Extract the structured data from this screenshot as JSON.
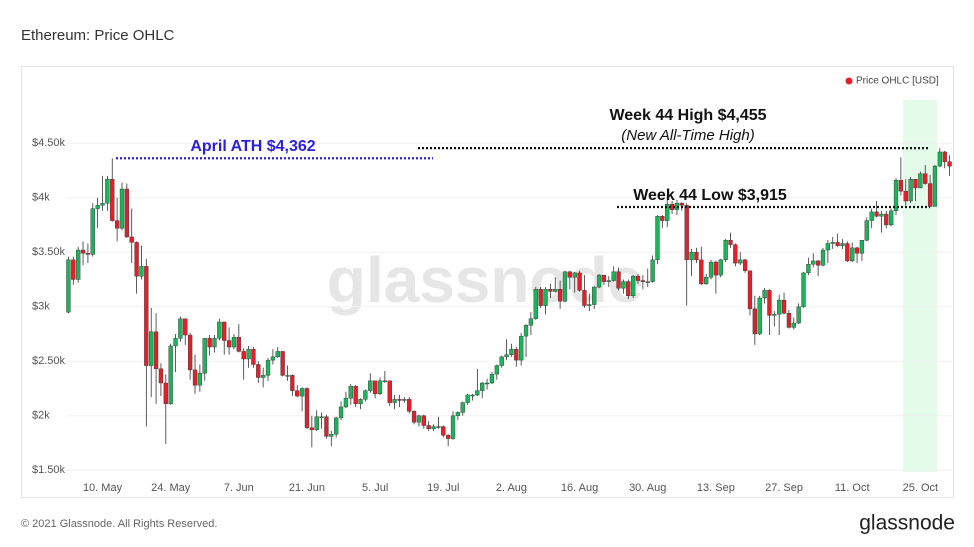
{
  "chart_data": {
    "type": "candlestick",
    "title": "Ethereum: Price OHLC",
    "watermark": "glassnode",
    "footer": "© 2021 Glassnode. All Rights Reserved.",
    "logo": "glassnode",
    "legend": "top-right",
    "grid": true,
    "ylim": [
      1410,
      4970
    ],
    "yticks": [
      {
        "value": 1500,
        "label": "$1.50k"
      },
      {
        "value": 2000,
        "label": "$2k"
      },
      {
        "value": 2500,
        "label": "$2.50k"
      },
      {
        "value": 3000,
        "label": "$3k"
      },
      {
        "value": 3500,
        "label": "$3.50k"
      },
      {
        "value": 4000,
        "label": "$4k"
      },
      {
        "value": 4500,
        "label": "$4.50k"
      }
    ],
    "categories": [
      null,
      null,
      null,
      null,
      null,
      null,
      null,
      "10. May",
      null,
      null,
      null,
      null,
      null,
      null,
      null,
      null,
      null,
      null,
      null,
      null,
      null,
      "24. May",
      null,
      null,
      null,
      null,
      null,
      null,
      null,
      null,
      null,
      null,
      null,
      null,
      null,
      "7. Jun",
      null,
      null,
      null,
      null,
      null,
      null,
      null,
      null,
      null,
      null,
      null,
      null,
      null,
      "21. Jun",
      null,
      null,
      null,
      null,
      null,
      null,
      null,
      null,
      null,
      null,
      null,
      null,
      null,
      "5. Jul",
      null,
      null,
      null,
      null,
      null,
      null,
      null,
      null,
      null,
      null,
      null,
      null,
      null,
      "19. Jul",
      null,
      null,
      null,
      null,
      null,
      null,
      null,
      null,
      null,
      null,
      null,
      null,
      null,
      "2. Aug",
      null,
      null,
      null,
      null,
      null,
      null,
      null,
      null,
      null,
      null,
      null,
      null,
      null,
      "16. Aug",
      null,
      null,
      null,
      null,
      null,
      null,
      null,
      null,
      null,
      null,
      null,
      null,
      null,
      "30. Aug",
      null,
      null,
      null,
      null,
      null,
      null,
      null,
      null,
      null,
      null,
      null,
      null,
      null,
      "13. Sep",
      null,
      null,
      null,
      null,
      null,
      null,
      null,
      null,
      null,
      null,
      null,
      null,
      null,
      "27. Sep",
      null,
      null,
      null,
      null,
      null,
      null,
      null,
      null,
      null,
      null,
      null,
      null,
      null,
      "11. Oct",
      null,
      null,
      null,
      null,
      null,
      null,
      null,
      null,
      null,
      null,
      null,
      null,
      null,
      "25. Oct",
      null,
      null,
      null,
      null,
      null,
      null
    ],
    "series": [
      {
        "name": "Price OHLC [USD]",
        "color": "#e3202a",
        "up_color": "#1cb35a",
        "down_color": "#e3202a",
        "open": [
          2950,
          3430,
          3250,
          3520,
          3490,
          3480,
          3900,
          3930,
          3950,
          4170,
          3790,
          3720,
          4080,
          3640,
          3590,
          3280,
          3370,
          2460,
          2770,
          2430,
          2300,
          2110,
          2640,
          2710,
          2890,
          2740,
          2420,
          2280,
          2390,
          2710,
          2630,
          2710,
          2860,
          2690,
          2630,
          2720,
          2590,
          2520,
          2610,
          2470,
          2350,
          2370,
          2510,
          2540,
          2590,
          2370,
          2370,
          2230,
          2180,
          2250,
          1890,
          1870,
          1990,
          1990,
          1810,
          1830,
          1980,
          2080,
          2160,
          2270,
          2110,
          2150,
          2230,
          2320,
          2200,
          2320,
          2320,
          2120,
          2150,
          2140,
          2150,
          2040,
          1940,
          2000,
          1910,
          1880,
          1900,
          1900,
          1820,
          1790,
          2000,
          2030,
          2120,
          2190,
          2190,
          2230,
          2300,
          2300,
          2380,
          2460,
          2540,
          2560,
          2610,
          2510,
          2730,
          2830,
          2890,
          3160,
          3010,
          3160,
          3140,
          3160,
          3050,
          3320,
          3270,
          3310,
          3150,
          3010,
          3020,
          3180,
          3290,
          3230,
          3240,
          3320,
          3170,
          3230,
          3100,
          3280,
          3240,
          3230,
          3230,
          3430,
          3830,
          3790,
          3940,
          3890,
          3950,
          3930,
          3430,
          3500,
          3430,
          3210,
          3270,
          3410,
          3290,
          3430,
          3610,
          3570,
          3400,
          3430,
          3330,
          2980,
          2750,
          3080,
          3150,
          2920,
          2930,
          3060,
          2940,
          2810,
          2850,
          3000,
          3310,
          3390,
          3420,
          3380,
          3520,
          3580,
          3590,
          3560,
          3580,
          3420,
          3540,
          3490,
          3610,
          3790,
          3870,
          3830,
          3850,
          3750,
          3880,
          4160,
          4060,
          3970,
          4170,
          4090,
          4220,
          4130,
          3920,
          4290,
          4420,
          4330
        ],
        "high": [
          3460,
          3460,
          3550,
          3600,
          3580,
          3950,
          4000,
          4200,
          4200,
          4362,
          4000,
          4140,
          4130,
          3900,
          3600,
          3560,
          3440,
          2990,
          2940,
          2480,
          2380,
          2660,
          2750,
          2910,
          2890,
          2760,
          2560,
          2470,
          2710,
          2740,
          2740,
          2890,
          2860,
          2810,
          2750,
          2840,
          2620,
          2640,
          2630,
          2500,
          2440,
          2530,
          2610,
          2630,
          2590,
          2460,
          2380,
          2280,
          2260,
          2260,
          2000,
          2050,
          2030,
          2010,
          1860,
          1990,
          2130,
          2220,
          2290,
          2280,
          2160,
          2240,
          2390,
          2320,
          2350,
          2410,
          2320,
          2190,
          2190,
          2170,
          2170,
          2050,
          2010,
          2010,
          1950,
          1920,
          1990,
          1910,
          1830,
          2040,
          2040,
          2130,
          2200,
          2200,
          2430,
          2310,
          2340,
          2400,
          2470,
          2550,
          2700,
          2660,
          2630,
          2760,
          2840,
          2950,
          3180,
          3180,
          3180,
          3210,
          3270,
          3240,
          3330,
          3330,
          3320,
          3330,
          3290,
          3120,
          3190,
          3300,
          3290,
          3280,
          3370,
          3360,
          3250,
          3250,
          3290,
          3300,
          3290,
          3350,
          3470,
          3840,
          3840,
          4020,
          3970,
          3980,
          3960,
          3950,
          3530,
          3540,
          3550,
          3300,
          3430,
          3420,
          3440,
          3620,
          3680,
          3580,
          3500,
          3440,
          3330,
          3100,
          3100,
          3170,
          3160,
          2960,
          3110,
          3130,
          2970,
          2900,
          3030,
          3320,
          3450,
          3490,
          3430,
          3540,
          3610,
          3640,
          3670,
          3620,
          3600,
          3590,
          3550,
          3610,
          3820,
          3900,
          3970,
          3880,
          3880,
          3900,
          4180,
          4370,
          4170,
          4190,
          4170,
          4240,
          4300,
          4210,
          4300,
          4455,
          4430,
          4390
        ],
        "low": [
          2940,
          3200,
          3220,
          3380,
          3400,
          3460,
          3720,
          3880,
          3880,
          3780,
          3600,
          3700,
          3630,
          3400,
          3120,
          3250,
          1900,
          2170,
          2110,
          2180,
          1740,
          2100,
          2400,
          2680,
          2650,
          2330,
          2200,
          2220,
          2320,
          2550,
          2580,
          2690,
          2560,
          2560,
          2610,
          2580,
          2330,
          2440,
          2440,
          2300,
          2260,
          2320,
          2470,
          2530,
          2360,
          2320,
          2180,
          2170,
          2040,
          1880,
          1710,
          1860,
          1880,
          1790,
          1720,
          1800,
          1960,
          2070,
          2100,
          2080,
          2060,
          2130,
          2210,
          2160,
          2190,
          2300,
          2090,
          2060,
          2080,
          2120,
          2020,
          1920,
          1900,
          1880,
          1860,
          1860,
          1880,
          1800,
          1720,
          1780,
          1960,
          2000,
          2100,
          2140,
          2180,
          2160,
          2240,
          2290,
          2330,
          2440,
          2510,
          2540,
          2450,
          2460,
          2540,
          2740,
          2880,
          2990,
          2930,
          3080,
          3130,
          2980,
          3040,
          3160,
          3130,
          3140,
          2990,
          2960,
          2980,
          3170,
          3200,
          3180,
          3230,
          3150,
          3120,
          3070,
          3080,
          3210,
          3160,
          3180,
          3220,
          3390,
          3720,
          3730,
          3850,
          3840,
          3880,
          3010,
          3280,
          3400,
          3200,
          3200,
          3250,
          3120,
          3270,
          3410,
          3540,
          3370,
          3380,
          3310,
          2920,
          2650,
          2740,
          3030,
          2740,
          2820,
          2740,
          2930,
          2800,
          2790,
          2840,
          2990,
          3290,
          3360,
          3280,
          3370,
          3400,
          3530,
          3550,
          3530,
          3410,
          3410,
          3400,
          3420,
          3600,
          3720,
          3820,
          3680,
          3720,
          3740,
          3840,
          4020,
          3930,
          3950,
          3970,
          4090,
          4120,
          3915,
          3930,
          4280,
          4270,
          4200
        ],
        "close": [
          3430,
          3250,
          3520,
          3490,
          3480,
          3900,
          3930,
          3950,
          4170,
          3790,
          3720,
          4080,
          3640,
          3590,
          3280,
          3370,
          2460,
          2770,
          2430,
          2300,
          2110,
          2640,
          2710,
          2890,
          2740,
          2420,
          2280,
          2390,
          2710,
          2630,
          2710,
          2860,
          2690,
          2630,
          2720,
          2590,
          2520,
          2610,
          2470,
          2350,
          2370,
          2510,
          2540,
          2590,
          2370,
          2370,
          2230,
          2180,
          2250,
          1890,
          1870,
          1990,
          1990,
          1810,
          1830,
          1980,
          2080,
          2160,
          2270,
          2110,
          2150,
          2230,
          2320,
          2200,
          2320,
          2320,
          2120,
          2150,
          2140,
          2150,
          2040,
          1940,
          2000,
          1910,
          1880,
          1900,
          1900,
          1820,
          1790,
          2000,
          2030,
          2120,
          2190,
          2190,
          2230,
          2300,
          2300,
          2380,
          2460,
          2540,
          2560,
          2610,
          2510,
          2730,
          2830,
          2890,
          3160,
          3010,
          3160,
          3140,
          3160,
          3050,
          3320,
          3270,
          3310,
          3150,
          3010,
          3020,
          3180,
          3290,
          3230,
          3240,
          3320,
          3170,
          3230,
          3100,
          3280,
          3240,
          3230,
          3230,
          3430,
          3830,
          3790,
          3940,
          3890,
          3950,
          3930,
          3430,
          3500,
          3430,
          3210,
          3270,
          3410,
          3290,
          3430,
          3610,
          3570,
          3400,
          3430,
          3330,
          2980,
          2750,
          3080,
          3150,
          2920,
          2930,
          3060,
          2940,
          2810,
          2850,
          3000,
          3310,
          3390,
          3420,
          3380,
          3520,
          3580,
          3590,
          3560,
          3580,
          3420,
          3540,
          3490,
          3610,
          3790,
          3870,
          3830,
          3850,
          3750,
          3880,
          4160,
          4060,
          3970,
          4170,
          4090,
          4220,
          4130,
          3920,
          4290,
          4420,
          4330,
          4290
        ]
      }
    ],
    "annotations": [
      {
        "text": "April ATH $4,362",
        "value": 4362,
        "color": "#2a1ee0"
      },
      {
        "text": "Week 44 High $4,455",
        "subtext": "(New All-Time High)",
        "value": 4455,
        "color": "#111111"
      },
      {
        "text": "Week 44 Low $3,915",
        "value": 3915,
        "color": "#111111"
      }
    ]
  }
}
